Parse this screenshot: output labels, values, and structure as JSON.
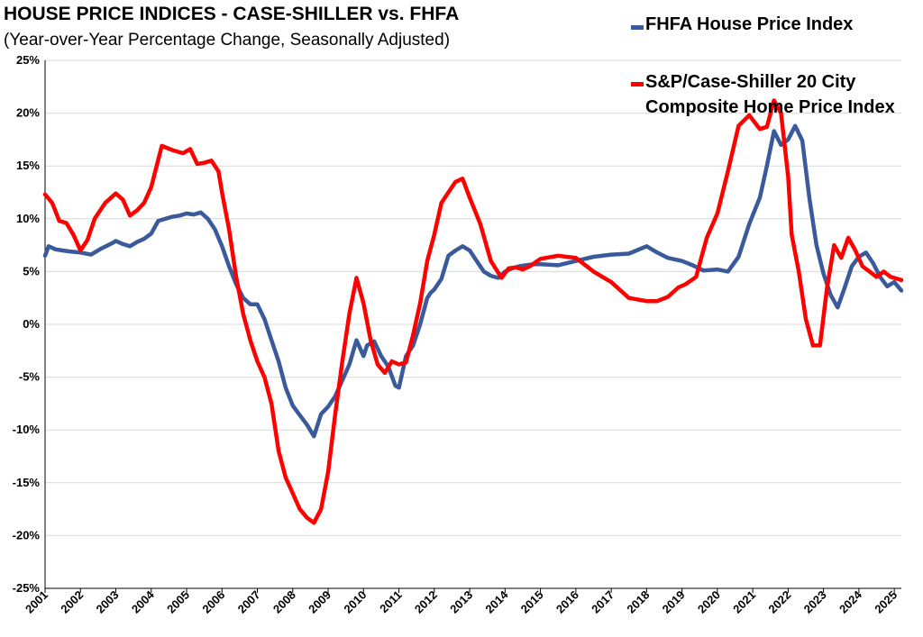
{
  "title": "HOUSE PRICE INDICES - CASE-SHILLER vs. FHFA",
  "subtitle": "(Year-over-Year Percentage Change, Seasonally Adjusted)",
  "legend": {
    "fhfa": "FHFA House Price Index",
    "cs_line1": "S&P/Case-Shiller 20 City",
    "cs_line2": "Composite Home Price Index"
  },
  "colors": {
    "fhfa": "#3a5a9b",
    "case_shiller": "#ff0000",
    "grid": "#d9d9d9"
  },
  "chart_data": {
    "type": "line",
    "title": "HOUSE PRICE INDICES - CASE-SHILLER vs. FHFA",
    "subtitle": "(Year-over-Year Percentage Change, Seasonally Adjusted)",
    "xlabel": "",
    "ylabel": "",
    "ylim": [
      -25,
      25
    ],
    "y_ticks": [
      -25,
      -20,
      -15,
      -10,
      -5,
      0,
      5,
      10,
      15,
      20,
      25
    ],
    "y_tick_labels": [
      "-25%",
      "-20%",
      "-15%",
      "-10%",
      "-5%",
      "0%",
      "5%",
      "10%",
      "15%",
      "20%",
      "25%"
    ],
    "xlim": [
      2001,
      2025.2
    ],
    "x_ticks": [
      2001,
      2002,
      2003,
      2004,
      2005,
      2006,
      2007,
      2008,
      2009,
      2010,
      2011,
      2012,
      2013,
      2014,
      2015,
      2016,
      2017,
      2018,
      2019,
      2020,
      2021,
      2022,
      2023,
      2024,
      2025
    ],
    "x_tick_labels": [
      "2001",
      "2002",
      "2003",
      "2004",
      "2005",
      "2006",
      "2007",
      "2008",
      "2009",
      "2010",
      "2011",
      "2012",
      "2013",
      "2014",
      "2015",
      "2016",
      "2017",
      "2018",
      "2019",
      "2020",
      "2021",
      "2022",
      "2023",
      "2024",
      "2025"
    ],
    "grid": "horizontal",
    "legend_position": "top-right",
    "series": [
      {
        "name": "FHFA House Price Index",
        "color": "#3a5a9b",
        "x": [
          2001.0,
          2001.1,
          2001.3,
          2001.5,
          2001.7,
          2002.0,
          2002.3,
          2002.6,
          2002.9,
          2003.0,
          2003.2,
          2003.4,
          2003.6,
          2003.8,
          2004.0,
          2004.2,
          2004.4,
          2004.6,
          2004.8,
          2005.0,
          2005.2,
          2005.4,
          2005.6,
          2005.8,
          2006.0,
          2006.2,
          2006.4,
          2006.6,
          2006.8,
          2007.0,
          2007.2,
          2007.4,
          2007.6,
          2007.8,
          2008.0,
          2008.2,
          2008.4,
          2008.6,
          2008.8,
          2009.0,
          2009.2,
          2009.4,
          2009.6,
          2009.8,
          2010.0,
          2010.1,
          2010.3,
          2010.5,
          2010.7,
          2010.9,
          2011.0,
          2011.2,
          2011.4,
          2011.6,
          2011.8,
          2011.9,
          2012.0,
          2012.2,
          2012.4,
          2012.6,
          2012.8,
          2013.0,
          2013.2,
          2013.4,
          2013.6,
          2013.8,
          2014.0,
          2014.2,
          2014.4,
          2014.6,
          2014.8,
          2015.0,
          2015.5,
          2016.0,
          2016.5,
          2017.0,
          2017.5,
          2018.0,
          2018.3,
          2018.6,
          2019.0,
          2019.3,
          2019.6,
          2020.0,
          2020.3,
          2020.6,
          2020.9,
          2021.2,
          2021.4,
          2021.6,
          2021.8,
          2022.0,
          2022.2,
          2022.4,
          2022.6,
          2022.8,
          2023.0,
          2023.2,
          2023.4,
          2023.6,
          2023.8,
          2024.0,
          2024.2,
          2024.4,
          2024.6,
          2024.8,
          2025.0,
          2025.2
        ],
        "y": [
          6.5,
          7.4,
          7.1,
          7.0,
          6.9,
          6.8,
          6.6,
          7.2,
          7.7,
          7.9,
          7.6,
          7.4,
          7.8,
          8.1,
          8.6,
          9.8,
          10.0,
          10.2,
          10.3,
          10.5,
          10.4,
          10.6,
          10.0,
          9.0,
          7.4,
          5.5,
          3.8,
          2.5,
          1.9,
          1.9,
          0.5,
          -1.5,
          -3.5,
          -6.0,
          -7.7,
          -8.6,
          -9.5,
          -10.6,
          -8.5,
          -7.8,
          -6.8,
          -5.3,
          -3.8,
          -1.5,
          -3.0,
          -2.0,
          -1.6,
          -3.0,
          -4.0,
          -5.8,
          -6.0,
          -3.0,
          -2.0,
          0.0,
          2.5,
          3.0,
          3.3,
          4.3,
          6.5,
          7.0,
          7.4,
          7.0,
          6.0,
          5.0,
          4.6,
          4.4,
          5.0,
          5.3,
          5.5,
          5.6,
          5.7,
          5.7,
          5.6,
          6.0,
          6.4,
          6.6,
          6.7,
          7.4,
          6.8,
          6.3,
          6.0,
          5.6,
          5.1,
          5.2,
          5.0,
          6.4,
          9.5,
          12.0,
          15.0,
          18.3,
          17.0,
          17.5,
          18.8,
          17.4,
          12.0,
          7.5,
          4.8,
          2.8,
          1.6,
          3.5,
          5.5,
          6.4,
          6.8,
          5.8,
          4.5,
          3.6,
          4.0,
          3.2
        ]
      },
      {
        "name": "S&P/Case-Shiller 20 City Composite Home Price Index",
        "color": "#ff0000",
        "x": [
          2001.0,
          2001.2,
          2001.4,
          2001.6,
          2001.8,
          2002.0,
          2002.2,
          2002.4,
          2002.7,
          2003.0,
          2003.2,
          2003.4,
          2003.6,
          2003.8,
          2004.0,
          2004.3,
          2004.6,
          2004.9,
          2005.1,
          2005.3,
          2005.5,
          2005.7,
          2005.9,
          2006.0,
          2006.2,
          2006.4,
          2006.6,
          2006.8,
          2007.0,
          2007.2,
          2007.4,
          2007.6,
          2007.8,
          2008.0,
          2008.2,
          2008.4,
          2008.6,
          2008.8,
          2009.0,
          2009.2,
          2009.4,
          2009.6,
          2009.8,
          2010.0,
          2010.2,
          2010.4,
          2010.6,
          2010.8,
          2011.0,
          2011.2,
          2011.4,
          2011.6,
          2011.8,
          2012.0,
          2012.2,
          2012.4,
          2012.6,
          2012.8,
          2013.0,
          2013.3,
          2013.6,
          2013.9,
          2014.1,
          2014.3,
          2014.5,
          2014.7,
          2015.0,
          2015.5,
          2016.0,
          2016.5,
          2017.0,
          2017.5,
          2018.0,
          2018.3,
          2018.6,
          2018.9,
          2019.1,
          2019.4,
          2019.7,
          2020.0,
          2020.3,
          2020.6,
          2020.9,
          2021.2,
          2021.4,
          2021.6,
          2021.8,
          2022.0,
          2022.1,
          2022.3,
          2022.5,
          2022.7,
          2022.9,
          2023.1,
          2023.3,
          2023.5,
          2023.7,
          2023.9,
          2024.1,
          2024.3,
          2024.5,
          2024.7,
          2024.9,
          2025.1,
          2025.2
        ],
        "y": [
          12.3,
          11.5,
          9.8,
          9.6,
          8.5,
          7.0,
          8.0,
          10.0,
          11.5,
          12.4,
          11.8,
          10.3,
          10.8,
          11.5,
          13.0,
          16.9,
          16.5,
          16.2,
          16.6,
          15.2,
          15.3,
          15.5,
          14.5,
          12.5,
          9.0,
          4.5,
          1.0,
          -1.5,
          -3.5,
          -5.0,
          -7.5,
          -12.0,
          -14.5,
          -16.0,
          -17.5,
          -18.3,
          -18.8,
          -17.5,
          -14.0,
          -8.5,
          -3.5,
          1.0,
          4.4,
          2.0,
          -1.5,
          -3.8,
          -4.6,
          -3.5,
          -3.8,
          -3.6,
          -1.0,
          2.0,
          6.0,
          8.5,
          11.5,
          12.5,
          13.5,
          13.8,
          12.0,
          9.5,
          6.0,
          4.4,
          5.3,
          5.4,
          5.2,
          5.5,
          6.2,
          6.5,
          6.3,
          5.0,
          4.0,
          2.5,
          2.2,
          2.2,
          2.6,
          3.5,
          3.8,
          4.5,
          8.2,
          10.5,
          14.5,
          18.8,
          19.8,
          18.5,
          18.7,
          21.2,
          20.0,
          14.0,
          8.5,
          5.0,
          0.5,
          -2.0,
          -2.0,
          3.5,
          7.5,
          6.3,
          8.2,
          7.0,
          5.5,
          5.0,
          4.5,
          5.0,
          4.5,
          4.3,
          4.2
        ]
      }
    ]
  }
}
